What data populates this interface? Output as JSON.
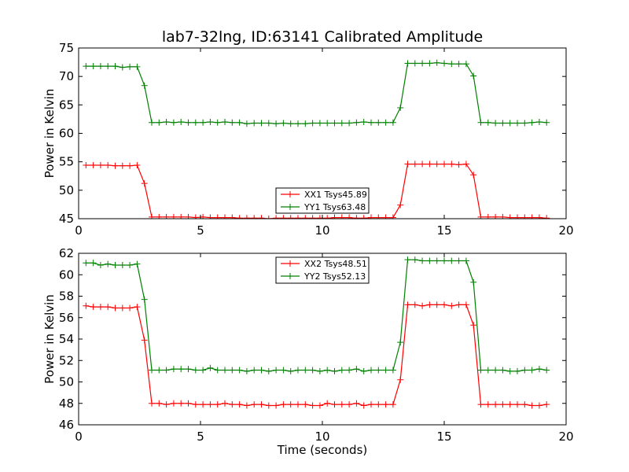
{
  "title": "lab7-32lng, ID:63141 Calibrated Amplitude",
  "colors": {
    "xx": "#ff0000",
    "yy": "#008000",
    "axes": "#000000",
    "background": "#ffffff"
  },
  "chart_data": [
    {
      "type": "line",
      "ylabel": "Power in Kelvin",
      "xlabel": "",
      "xlim": [
        0,
        20
      ],
      "ylim": [
        45,
        75
      ],
      "xticks": [
        "0",
        "5",
        "10",
        "15",
        "20"
      ],
      "yticks": [
        "45",
        "50",
        "55",
        "60",
        "65",
        "70",
        "75"
      ],
      "legend_position": "lower-center",
      "x": [
        0.3,
        0.6,
        0.9,
        1.2,
        1.5,
        1.8,
        2.1,
        2.4,
        2.7,
        3.0,
        3.3,
        3.6,
        3.9,
        4.2,
        4.5,
        4.8,
        5.1,
        5.4,
        5.7,
        6.0,
        6.3,
        6.6,
        6.9,
        7.2,
        7.5,
        7.8,
        8.1,
        8.4,
        8.7,
        9.0,
        9.3,
        9.6,
        9.9,
        10.2,
        10.5,
        10.8,
        11.1,
        11.4,
        11.7,
        12.0,
        12.3,
        12.6,
        12.9,
        13.2,
        13.5,
        13.8,
        14.1,
        14.4,
        14.7,
        15.0,
        15.3,
        15.6,
        15.9,
        16.2,
        16.5,
        16.8,
        17.1,
        17.4,
        17.7,
        18.0,
        18.3,
        18.6,
        18.9,
        19.2
      ],
      "series": [
        {
          "name": "XX1 Tsys45.89",
          "color_key": "xx",
          "values": [
            54.4,
            54.4,
            54.4,
            54.4,
            54.3,
            54.3,
            54.3,
            54.4,
            51.2,
            45.3,
            45.3,
            45.3,
            45.3,
            45.3,
            45.3,
            45.2,
            45.3,
            45.2,
            45.2,
            45.2,
            45.2,
            45.1,
            45.1,
            45.1,
            45.1,
            45.0,
            45.1,
            45.1,
            45.1,
            45.1,
            45.1,
            45.1,
            45.1,
            45.1,
            45.2,
            45.2,
            45.2,
            45.1,
            45.1,
            45.2,
            45.2,
            45.2,
            45.2,
            47.4,
            54.6,
            54.6,
            54.6,
            54.6,
            54.6,
            54.6,
            54.6,
            54.5,
            54.6,
            52.7,
            45.3,
            45.3,
            45.3,
            45.3,
            45.2,
            45.2,
            45.2,
            45.2,
            45.2,
            45.1
          ]
        },
        {
          "name": "YY1 Tsys63.48",
          "color_key": "yy",
          "values": [
            71.8,
            71.8,
            71.8,
            71.8,
            71.8,
            71.6,
            71.7,
            71.7,
            68.4,
            61.9,
            61.9,
            62.0,
            61.9,
            62.0,
            61.9,
            61.9,
            61.9,
            62.0,
            61.9,
            62.0,
            61.9,
            61.9,
            61.7,
            61.8,
            61.8,
            61.8,
            61.7,
            61.8,
            61.7,
            61.7,
            61.7,
            61.8,
            61.8,
            61.8,
            61.8,
            61.8,
            61.8,
            61.9,
            62.0,
            61.9,
            61.9,
            61.9,
            61.9,
            64.5,
            72.3,
            72.3,
            72.3,
            72.3,
            72.4,
            72.3,
            72.2,
            72.2,
            72.2,
            70.1,
            61.9,
            61.9,
            61.8,
            61.8,
            61.8,
            61.8,
            61.8,
            61.9,
            62.0,
            61.9
          ]
        }
      ]
    },
    {
      "type": "line",
      "ylabel": "Power in Kelvin",
      "xlabel": "Time (seconds)",
      "xlim": [
        0,
        20
      ],
      "ylim": [
        46,
        62
      ],
      "xticks": [
        "0",
        "5",
        "10",
        "15",
        "20"
      ],
      "yticks": [
        "46",
        "48",
        "50",
        "52",
        "54",
        "56",
        "58",
        "60",
        "62"
      ],
      "legend_position": "upper-center",
      "x": [
        0.3,
        0.6,
        0.9,
        1.2,
        1.5,
        1.8,
        2.1,
        2.4,
        2.7,
        3.0,
        3.3,
        3.6,
        3.9,
        4.2,
        4.5,
        4.8,
        5.1,
        5.4,
        5.7,
        6.0,
        6.3,
        6.6,
        6.9,
        7.2,
        7.5,
        7.8,
        8.1,
        8.4,
        8.7,
        9.0,
        9.3,
        9.6,
        9.9,
        10.2,
        10.5,
        10.8,
        11.1,
        11.4,
        11.7,
        12.0,
        12.3,
        12.6,
        12.9,
        13.2,
        13.5,
        13.8,
        14.1,
        14.4,
        14.7,
        15.0,
        15.3,
        15.6,
        15.9,
        16.2,
        16.5,
        16.8,
        17.1,
        17.4,
        17.7,
        18.0,
        18.3,
        18.6,
        18.9,
        19.2
      ],
      "series": [
        {
          "name": "XX2 Tsys48.51",
          "color_key": "xx",
          "values": [
            57.1,
            57.0,
            57.0,
            57.0,
            56.9,
            56.9,
            56.9,
            57.0,
            53.9,
            48.0,
            48.0,
            47.9,
            48.0,
            48.0,
            48.0,
            47.9,
            47.9,
            47.9,
            47.9,
            48.0,
            47.9,
            47.9,
            47.8,
            47.9,
            47.9,
            47.8,
            47.8,
            47.9,
            47.9,
            47.9,
            47.9,
            47.8,
            47.8,
            48.0,
            47.9,
            47.9,
            47.9,
            48.0,
            47.8,
            47.9,
            47.9,
            47.9,
            47.9,
            50.2,
            57.2,
            57.2,
            57.1,
            57.2,
            57.2,
            57.2,
            57.1,
            57.2,
            57.2,
            55.3,
            47.9,
            47.9,
            47.9,
            47.9,
            47.9,
            47.9,
            47.9,
            47.8,
            47.8,
            47.9
          ]
        },
        {
          "name": "YY2 Tsys52.13",
          "color_key": "yy",
          "values": [
            61.1,
            61.1,
            60.9,
            61.0,
            60.9,
            60.9,
            60.9,
            61.0,
            57.7,
            51.1,
            51.1,
            51.1,
            51.2,
            51.2,
            51.2,
            51.1,
            51.1,
            51.3,
            51.1,
            51.1,
            51.1,
            51.1,
            51.0,
            51.1,
            51.1,
            51.0,
            51.1,
            51.1,
            51.0,
            51.1,
            51.1,
            51.1,
            51.0,
            51.1,
            51.0,
            51.1,
            51.1,
            51.2,
            51.0,
            51.1,
            51.1,
            51.1,
            51.1,
            53.7,
            61.4,
            61.4,
            61.3,
            61.3,
            61.3,
            61.3,
            61.3,
            61.3,
            61.3,
            59.3,
            51.1,
            51.1,
            51.1,
            51.1,
            51.0,
            51.0,
            51.1,
            51.1,
            51.2,
            51.1
          ]
        }
      ]
    }
  ]
}
